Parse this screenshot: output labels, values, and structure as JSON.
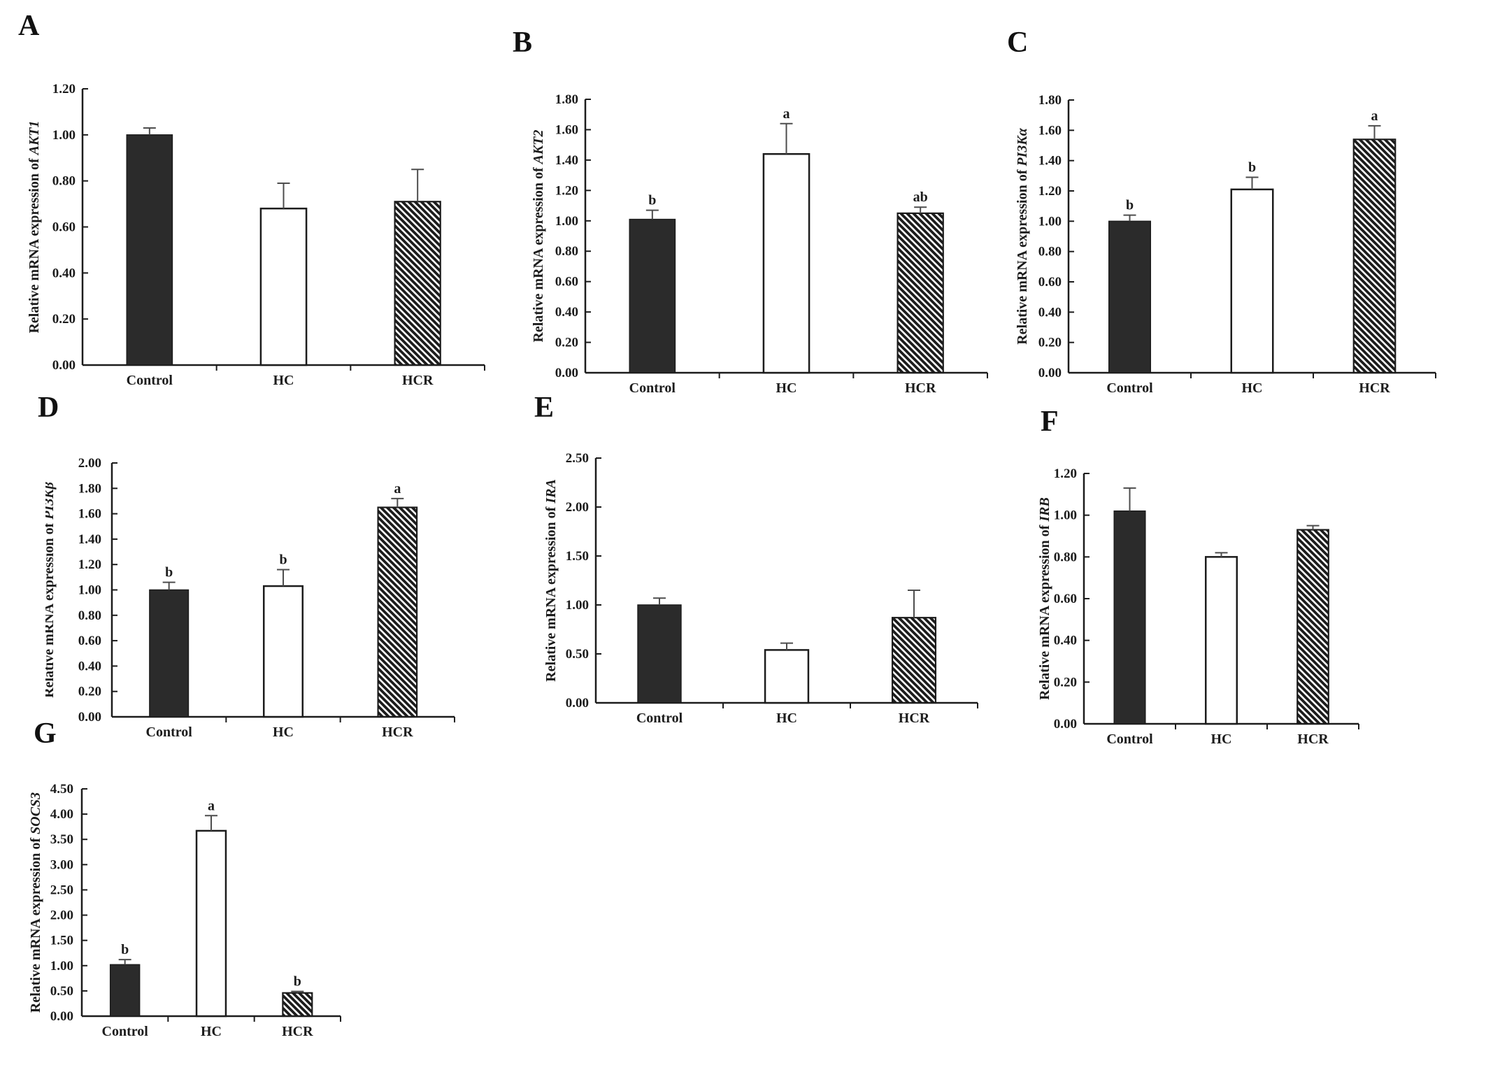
{
  "figure": {
    "background": "#ffffff",
    "ink_color": "#1c1c1c",
    "bar_solid_fill": "#2b2b2b",
    "open_bar_fill": "#ffffff",
    "error_bar_color": "#4d4d4d",
    "categories": [
      "Control",
      "HC",
      "HCR"
    ],
    "bar_styles": [
      "solid",
      "open",
      "hatch"
    ],
    "hatch_description": "black diagonal stripes, top-left to bottom-right"
  },
  "chart_data": [
    {
      "panel": "A",
      "type": "bar",
      "grid": false,
      "legend": "none",
      "ylabel_prefix": "Relative mRNA expression of ",
      "gene": "AKT1",
      "categories": [
        "Control",
        "HC",
        "HCR"
      ],
      "values": [
        1.0,
        0.68,
        0.71
      ],
      "errors": [
        0.03,
        0.11,
        0.14
      ],
      "letters": [
        "",
        "",
        ""
      ],
      "ylim": [
        0,
        1.2
      ],
      "ystep": 0.2,
      "tick_format_decimals": 2
    },
    {
      "panel": "B",
      "type": "bar",
      "grid": false,
      "legend": "none",
      "ylabel_prefix": "Relative mRNA expression of ",
      "gene": "AKT2",
      "categories": [
        "Control",
        "HC",
        "HCR"
      ],
      "values": [
        1.01,
        1.44,
        1.05
      ],
      "errors": [
        0.06,
        0.2,
        0.04
      ],
      "letters": [
        "b",
        "a",
        "ab"
      ],
      "ylim": [
        0,
        1.8
      ],
      "ystep": 0.2,
      "tick_format_decimals": 2
    },
    {
      "panel": "C",
      "type": "bar",
      "grid": false,
      "legend": "none",
      "ylabel_prefix": "Relative mRNA expression of ",
      "gene": "PI3Kα",
      "categories": [
        "Control",
        "HC",
        "HCR"
      ],
      "values": [
        1.0,
        1.21,
        1.54
      ],
      "errors": [
        0.04,
        0.08,
        0.09
      ],
      "letters": [
        "b",
        "b",
        "a"
      ],
      "ylim": [
        0,
        1.8
      ],
      "ystep": 0.2,
      "tick_format_decimals": 2
    },
    {
      "panel": "D",
      "type": "bar",
      "grid": false,
      "legend": "none",
      "ylabel_prefix": "Relative mRNA expression of ",
      "gene": "PI3Kβ",
      "categories": [
        "Control",
        "HC",
        "HCR"
      ],
      "values": [
        1.0,
        1.03,
        1.65
      ],
      "errors": [
        0.06,
        0.13,
        0.07
      ],
      "letters": [
        "b",
        "b",
        "a"
      ],
      "ylim": [
        0,
        2.0
      ],
      "ystep": 0.2,
      "tick_format_decimals": 2
    },
    {
      "panel": "E",
      "type": "bar",
      "grid": false,
      "legend": "none",
      "ylabel_prefix": "Relative mRNA expression of ",
      "gene": "IRA",
      "categories": [
        "Control",
        "HC",
        "HCR"
      ],
      "values": [
        1.0,
        0.54,
        0.87
      ],
      "errors": [
        0.07,
        0.07,
        0.28
      ],
      "letters": [
        "",
        "",
        ""
      ],
      "ylim": [
        0,
        2.5
      ],
      "ystep": 0.5,
      "tick_format_decimals": 2
    },
    {
      "panel": "F",
      "type": "bar",
      "grid": false,
      "legend": "none",
      "ylabel_prefix": "Relative mRNA expression of ",
      "gene": "IRB",
      "categories": [
        "Control",
        "HC",
        "HCR"
      ],
      "values": [
        1.02,
        0.8,
        0.93
      ],
      "errors": [
        0.11,
        0.02,
        0.02
      ],
      "letters": [
        "",
        "",
        ""
      ],
      "ylim": [
        0,
        1.2
      ],
      "ystep": 0.2,
      "tick_format_decimals": 2
    },
    {
      "panel": "G",
      "type": "bar",
      "grid": false,
      "legend": "none",
      "ylabel_prefix": "Relative mRNA expression of ",
      "gene": "SOCS3",
      "categories": [
        "Control",
        "HC",
        "HCR"
      ],
      "values": [
        1.02,
        3.67,
        0.46
      ],
      "errors": [
        0.1,
        0.3,
        0.03
      ],
      "letters": [
        "b",
        "a",
        "b"
      ],
      "ylim": [
        0,
        4.5
      ],
      "ystep": 0.5,
      "tick_format_decimals": 2
    }
  ]
}
